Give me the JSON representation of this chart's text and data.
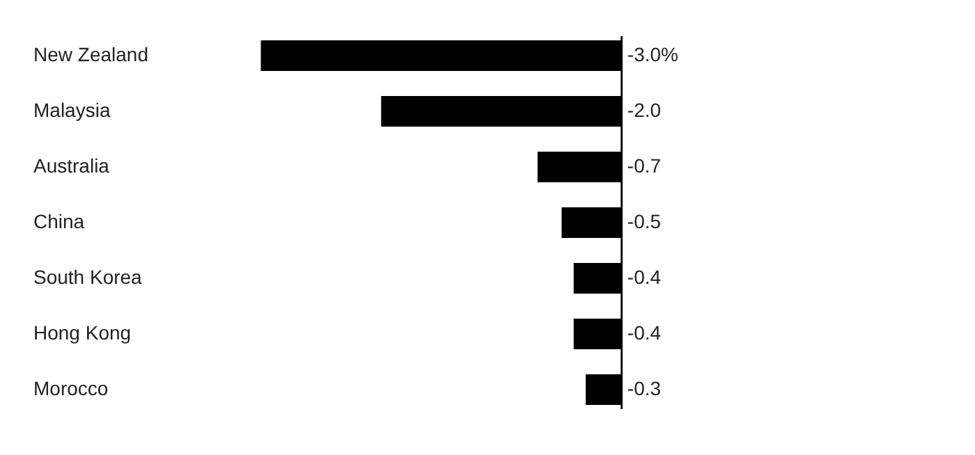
{
  "chart_data": {
    "type": "bar",
    "orientation": "horizontal",
    "categories": [
      "New Zealand",
      "Malaysia",
      "Australia",
      "China",
      "South Korea",
      "Hong Kong",
      "Morocco"
    ],
    "values": [
      -3.0,
      -2.0,
      -0.7,
      -0.5,
      -0.4,
      -0.4,
      -0.3
    ],
    "value_labels": [
      "-3.0%",
      "-2.0",
      "-0.7",
      "-0.5",
      "-0.4",
      "-0.4",
      "-0.3"
    ],
    "color": "#000000"
  }
}
